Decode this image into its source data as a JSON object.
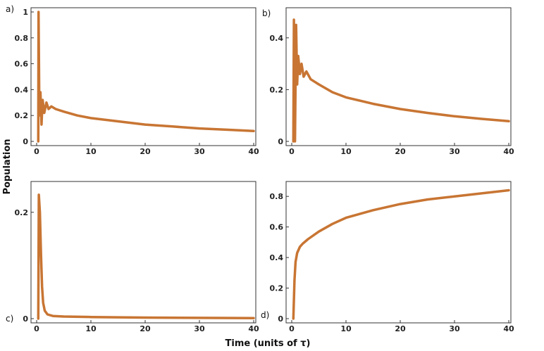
{
  "figure": {
    "ylabel": "Population",
    "xlabel": "Time (units of τ)"
  },
  "colors": {
    "orange": "#C87533",
    "blue": "#4F7FBF",
    "green": "#5DAA4E",
    "frame": "#333333"
  },
  "chart_data": [
    {
      "type": "line",
      "panel_label": "a)",
      "xlim": [
        0,
        40
      ],
      "ylim": [
        0,
        1
      ],
      "xticks": [
        "0",
        "10",
        "20",
        "30",
        "40"
      ],
      "yticks": [
        {
          "v": 0,
          "t": "0"
        },
        {
          "v": 0.2,
          "t": "0.2"
        },
        {
          "v": 0.4,
          "t": "0.4"
        },
        {
          "v": 0.6,
          "t": "0.6"
        },
        {
          "v": 0.8,
          "t": "0.8"
        },
        {
          "v": 1,
          "t": "1"
        }
      ],
      "series": [
        {
          "color": "orange",
          "x": [
            0.3,
            0.35,
            0.5,
            0.7,
            0.9,
            1.1,
            1.4,
            1.8,
            2.2,
            2.7,
            3.5,
            5,
            7.5,
            10,
            15,
            20,
            25,
            30,
            35,
            40
          ],
          "y": [
            0.0,
            1.0,
            0.2,
            0.38,
            0.13,
            0.32,
            0.22,
            0.3,
            0.25,
            0.27,
            0.25,
            0.23,
            0.2,
            0.18,
            0.155,
            0.13,
            0.115,
            0.1,
            0.09,
            0.08
          ]
        }
      ]
    },
    {
      "type": "line",
      "panel_label": "b)",
      "xlim": [
        0,
        40
      ],
      "ylim": [
        0,
        0.5
      ],
      "xticks": [
        "0",
        "10",
        "20",
        "30",
        "40"
      ],
      "yticks": [
        {
          "v": 0,
          "t": "0"
        },
        {
          "v": 0.2,
          "t": "0.2"
        },
        {
          "v": 0.4,
          "t": "0.4"
        }
      ],
      "series": [
        {
          "color": "orange",
          "x": [
            0.3,
            0.4,
            0.6,
            0.8,
            1.0,
            1.2,
            1.5,
            1.8,
            2.2,
            2.7,
            3.5,
            5,
            7.5,
            10,
            15,
            20,
            25,
            30,
            35,
            40
          ],
          "y": [
            0.0,
            0.47,
            0.0,
            0.45,
            0.22,
            0.33,
            0.26,
            0.3,
            0.25,
            0.27,
            0.24,
            0.22,
            0.19,
            0.17,
            0.145,
            0.125,
            0.11,
            0.097,
            0.087,
            0.078
          ]
        }
      ]
    },
    {
      "type": "line",
      "panel_label": "c)",
      "xlim": [
        0,
        40
      ],
      "ylim": [
        0,
        0.25
      ],
      "xticks": [
        "0",
        "10",
        "20",
        "30",
        "40"
      ],
      "yticks": [
        {
          "v": 0,
          "t": "0"
        },
        {
          "v": 0.2,
          "t": "0.2"
        }
      ],
      "series": [
        {
          "color": "orange",
          "x": [
            0.3,
            0.4,
            0.6,
            0.8,
            1.0,
            1.2,
            1.5,
            2,
            3,
            5,
            10,
            20,
            30,
            40
          ],
          "y": [
            0.0,
            0.233,
            0.2,
            0.12,
            0.06,
            0.03,
            0.015,
            0.008,
            0.005,
            0.004,
            0.003,
            0.002,
            0.0015,
            0.001
          ]
        }
      ]
    },
    {
      "type": "line",
      "panel_label": "d)",
      "xlim": [
        0,
        40
      ],
      "ylim": [
        0,
        0.87
      ],
      "xticks": [
        "0",
        "10",
        "20",
        "30",
        "40"
      ],
      "yticks": [
        {
          "v": 0,
          "t": "0"
        },
        {
          "v": 0.2,
          "t": "0.2"
        },
        {
          "v": 0.4,
          "t": "0.4"
        },
        {
          "v": 0.6,
          "t": "0.6"
        },
        {
          "v": 0.8,
          "t": "0.8"
        }
      ],
      "series": [
        {
          "color": "orange",
          "x": [
            0.3,
            0.5,
            0.7,
            1.0,
            1.5,
            2,
            3,
            5,
            7.5,
            10,
            15,
            20,
            25,
            30,
            35,
            40
          ],
          "y": [
            0.0,
            0.25,
            0.37,
            0.43,
            0.47,
            0.49,
            0.52,
            0.57,
            0.62,
            0.66,
            0.71,
            0.75,
            0.78,
            0.8,
            0.82,
            0.84
          ]
        }
      ]
    }
  ]
}
